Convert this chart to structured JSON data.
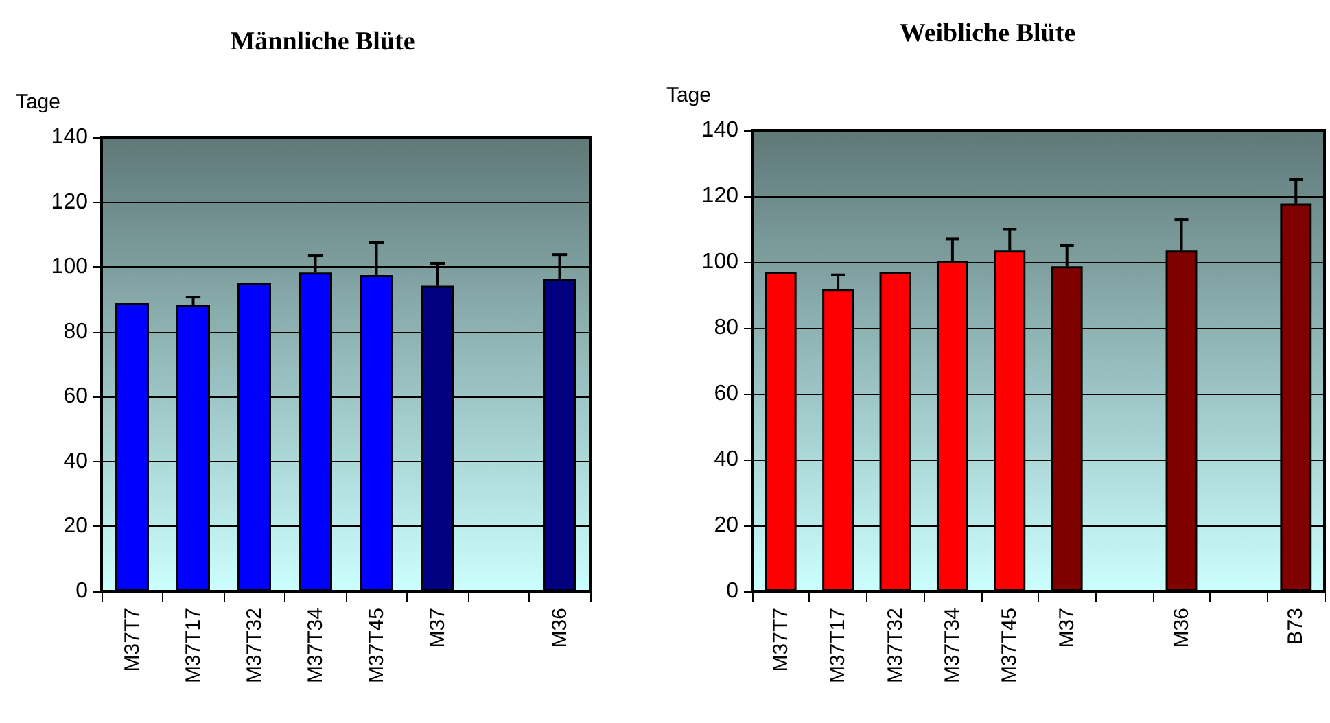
{
  "chart_data": [
    {
      "type": "bar",
      "title": "Männliche Blüte",
      "ylabel": "Tage",
      "categories": [
        "M37T7",
        "M37T17",
        "M37T32",
        "M37T34",
        "M37T45",
        "M37",
        null,
        "M36"
      ],
      "values": [
        89,
        88.4,
        95,
        98.3,
        97.5,
        94.2,
        null,
        96.2
      ],
      "errors": [
        null,
        [
          88.4,
          90.7
        ],
        null,
        [
          98.3,
          103.4
        ],
        [
          97.5,
          107.6
        ],
        [
          94.2,
          101.1
        ],
        null,
        [
          96.2,
          103.8
        ]
      ],
      "colors": [
        "#0000ff",
        "#0000ff",
        "#0000ff",
        "#0000ff",
        "#0000ff",
        "#000080",
        "#000080",
        "#000080"
      ],
      "ylim": [
        0,
        140
      ],
      "yticks": [
        0,
        20,
        40,
        60,
        80,
        100,
        120,
        140
      ],
      "grid": "y"
    },
    {
      "type": "bar",
      "title": "Weibliche Blüte",
      "ylabel": "Tage",
      "categories": [
        "M37T7",
        "M37T17",
        "M37T32",
        "M37T34",
        "M37T45",
        "M37",
        null,
        "M36",
        null,
        "B73"
      ],
      "values": [
        96.9,
        91.8,
        96.9,
        100.3,
        103.5,
        98.7,
        null,
        103.5,
        null,
        117.8
      ],
      "errors": [
        null,
        [
          91.8,
          96.1
        ],
        null,
        [
          100.3,
          107
        ],
        [
          103.5,
          109.9
        ],
        [
          98.7,
          105
        ],
        null,
        [
          103.5,
          112.9
        ],
        null,
        [
          117.8,
          125
        ]
      ],
      "colors": [
        "#ff0000",
        "#ff0000",
        "#ff0000",
        "#ff0000",
        "#ff0000",
        "#800000",
        "#800000",
        "#800000",
        "#800000",
        "#800000"
      ],
      "ylim": [
        0,
        140
      ],
      "yticks": [
        0,
        20,
        40,
        60,
        80,
        100,
        120,
        140
      ],
      "grid": "y"
    }
  ]
}
